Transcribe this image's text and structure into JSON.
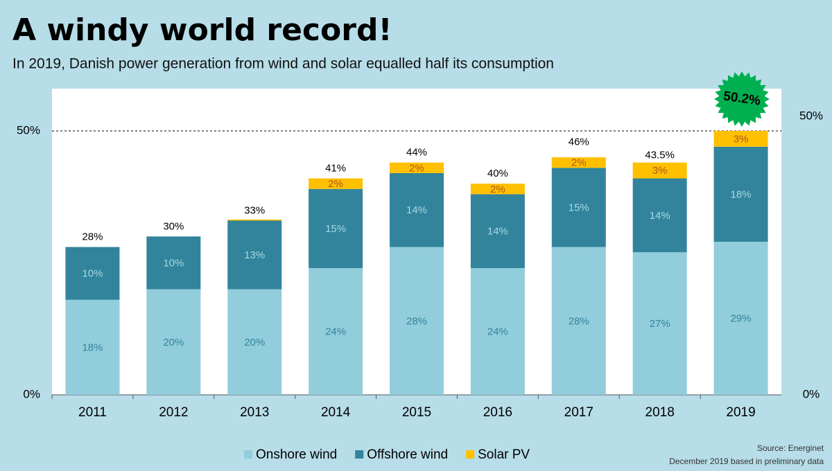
{
  "chart_data": {
    "type": "bar",
    "stacked": true,
    "title": "A windy world record!",
    "subtitle": "In 2019, Danish power generation from wind and solar equalled half its consumption",
    "categories": [
      "2011",
      "2012",
      "2013",
      "2014",
      "2015",
      "2016",
      "2017",
      "2018",
      "2019"
    ],
    "series": [
      {
        "name": "Onshore wind",
        "color": "#92cddc",
        "label_color": "#31849b",
        "values": [
          18,
          20,
          20,
          24,
          28,
          24,
          28,
          27,
          29
        ],
        "value_labels": [
          "18%",
          "20%",
          "20%",
          "24%",
          "28%",
          "24%",
          "28%",
          "27%",
          "29%"
        ]
      },
      {
        "name": "Offshore wind",
        "color": "#31849b",
        "label_color": "#a9d8e6",
        "values": [
          10,
          10,
          13,
          15,
          14,
          14,
          15,
          14,
          18
        ],
        "value_labels": [
          "10%",
          "10%",
          "13%",
          "15%",
          "14%",
          "14%",
          "15%",
          "14%",
          "18%"
        ]
      },
      {
        "name": "Solar PV",
        "color": "#ffc000",
        "label_color": "#b0531a",
        "values": [
          null,
          null,
          0.2,
          2,
          2,
          2,
          2,
          3,
          3
        ],
        "value_labels": [
          null,
          null,
          null,
          "2%",
          "2%",
          "2%",
          "2%",
          "3%",
          "3%"
        ]
      }
    ],
    "totals": {
      "values": [
        28,
        30,
        33,
        41,
        44,
        40,
        46,
        43.5,
        50.2
      ],
      "value_labels": [
        "28%",
        "30%",
        "33%",
        "41%",
        "44%",
        "40%",
        "46%",
        "43.5%",
        "50.2%"
      ]
    },
    "ylim": [
      0,
      58
    ],
    "yticks": [
      {
        "value": 0,
        "label": "0%"
      },
      {
        "value": 50,
        "label": "50%"
      }
    ],
    "y2lim": [
      0,
      55
    ],
    "y2ticks": [
      {
        "value": 0,
        "label": "0%"
      },
      {
        "value": 50,
        "label": "50%"
      }
    ],
    "grid": true,
    "legend": "bottom",
    "source": "Source: Energinet",
    "note": "December 2019  based in preliminary data"
  }
}
